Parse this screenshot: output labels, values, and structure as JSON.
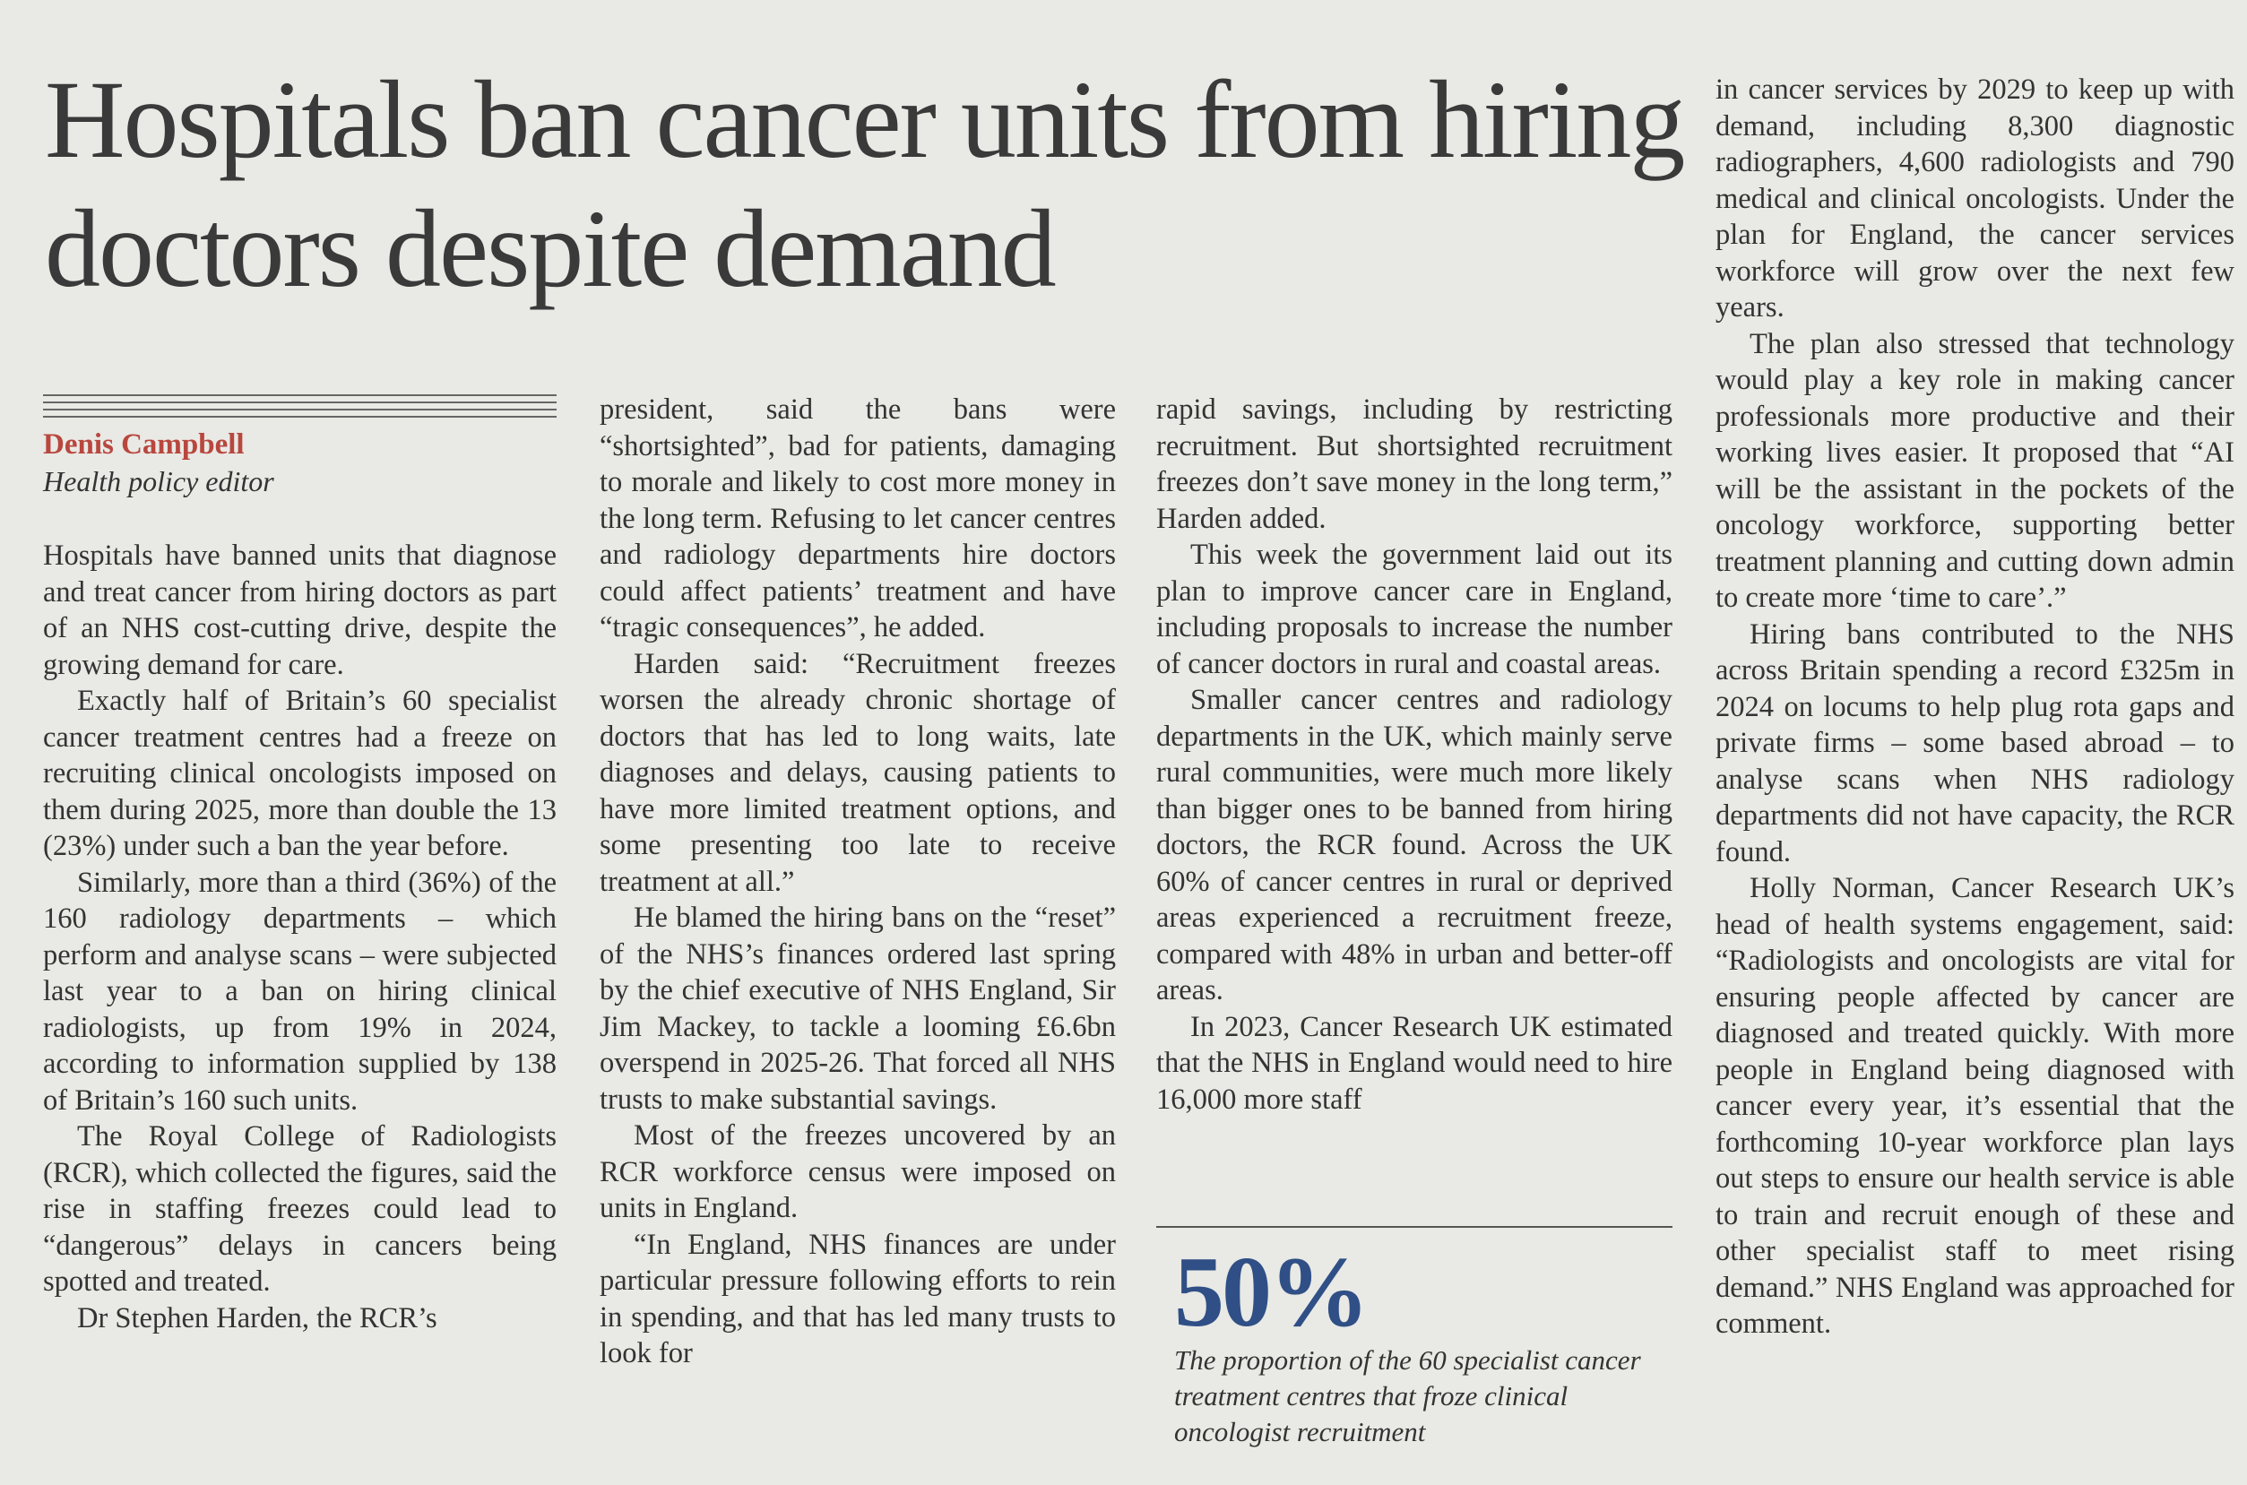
{
  "headline": "Hospitals ban cancer units from hiring doctors despite demand",
  "byline": {
    "name": "Denis Campbell",
    "role": "Health policy editor"
  },
  "columns": [
    {
      "paragraphs": [
        "Hospitals have banned units that diagnose and treat cancer from hiring doctors as part of an NHS cost-cutting drive, despite the growing demand for care.",
        "Exactly half of Britain’s 60 specialist cancer treatment centres had a freeze on recruiting clinical oncologists imposed on them during 2025, more than double the 13 (23%) under such a ban the year before.",
        "Similarly, more than a third (36%) of the 160 radiology departments – which perform and analyse scans – were subjected last year to a ban on hiring clinical radiologists, up from 19% in 2024, according to information supplied by 138 of Britain’s 160 such units.",
        "The Royal College of Radiologists (RCR), which collected the figures, said the rise in staffing freezes could lead to “dangerous” delays in cancers being spotted and treated.",
        "Dr Stephen Harden, the RCR’s"
      ]
    },
    {
      "paragraphs": [
        "president, said the bans were “shortsighted”, bad for patients, damaging to morale and likely to cost more money in the long term. Refusing to let cancer centres and radiology departments hire doctors could affect patients’ treatment and have “tragic consequences”, he added.",
        "Harden said: “Recruitment freezes worsen the already chronic shortage of doctors that has led to long waits, late diagnoses and delays, causing patients to have more limited treatment options, and some presenting too late to receive treatment at all.”",
        "He blamed the hiring bans on the “reset” of the NHS’s finances ordered last spring by the chief executive of NHS England, Sir Jim Mackey, to tackle a looming £6.6bn overspend in 2025-26. That forced all NHS trusts to make substantial savings.",
        "Most of the freezes uncovered by an RCR workforce census were imposed on units in England.",
        "“In England, NHS finances are under particular pressure following efforts to rein in spending, and that has led many trusts to look for"
      ]
    },
    {
      "paragraphs": [
        "rapid savings, including by restricting recruitment. But shortsighted recruitment freezes don’t save money in the long term,” Harden added.",
        "This week the government laid out its plan to improve cancer care in England, including proposals to increase the number of cancer doctors in rural and coastal areas.",
        "Smaller cancer centres and radiology departments in the UK, which mainly serve rural communities, were much more likely than bigger ones to be banned from hiring doctors, the RCR found. Across the UK 60% of cancer centres in rural or deprived areas experienced a recruitment freeze, compared with 48% in urban and better-off areas.",
        "In 2023, Cancer Research UK estimated that the NHS in England would need to hire 16,000 more staff"
      ]
    },
    {
      "paragraphs": [
        "in cancer services by 2029 to keep up with demand, including 8,300 diagnostic radiographers, 4,600 radiologists and 790 medical and clinical oncologists. Under the plan for England, the cancer services workforce will grow over the next few years.",
        "The plan also stressed that technology would play a key role in making cancer professionals more productive and their working lives easier. It proposed that “AI will be the assistant in the pockets of the oncology workforce, supporting better treatment planning and cutting down admin to create more ‘time to care’.”",
        "Hiring bans contributed to the NHS across Britain spending a record £325m in 2024 on locums to help plug rota gaps and private firms – some based abroad – to analyse scans when NHS radiology departments did not have capacity, the RCR found.",
        "Holly Norman, Cancer Research UK’s head of health systems engagement, said: “Radiologists and oncologists are vital for ensuring people affected by cancer are diagnosed and treated quickly. With more people in England being diagnosed with cancer every year, it’s essential that the forthcoming 10-year workforce plan lays out steps to ensure our health service is able to train and recruit enough of these and other specialist staff to meet rising demand.” NHS England was approached for comment."
      ]
    }
  ],
  "pullquote": {
    "figure": "50%",
    "caption": "The proportion of the 60 specialist cancer treatment centres that froze clinical oncologist recruitment"
  }
}
